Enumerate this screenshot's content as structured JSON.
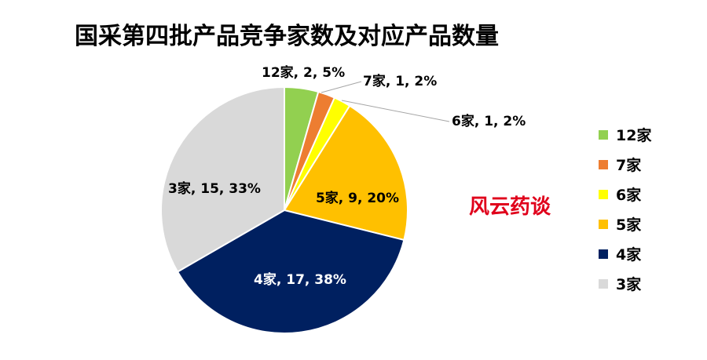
{
  "chart_data": {
    "type": "pie",
    "title": "国采第四批产品竞争家数及对应产品数量",
    "watermark": "风云药谈",
    "legend_position": "right",
    "slices": [
      {
        "name": "12家",
        "value": 2,
        "percent": "5%",
        "color": "#92d050",
        "label": "12家, 2, 5%"
      },
      {
        "name": "7家",
        "value": 1,
        "percent": "2%",
        "color": "#ed7d31",
        "label": "7家, 1, 2%"
      },
      {
        "name": "6家",
        "value": 1,
        "percent": "2%",
        "color": "#ffff00",
        "label": "6家, 1, 2%"
      },
      {
        "name": "5家",
        "value": 9,
        "percent": "20%",
        "color": "#ffc000",
        "label": "5家, 9, 20%"
      },
      {
        "name": "4家",
        "value": 17,
        "percent": "38%",
        "color": "#002060",
        "label": "4家, 17, 38%"
      },
      {
        "name": "3家",
        "value": 15,
        "percent": "33%",
        "color": "#d9d9d9",
        "label": "3家, 15, 33%"
      }
    ]
  }
}
